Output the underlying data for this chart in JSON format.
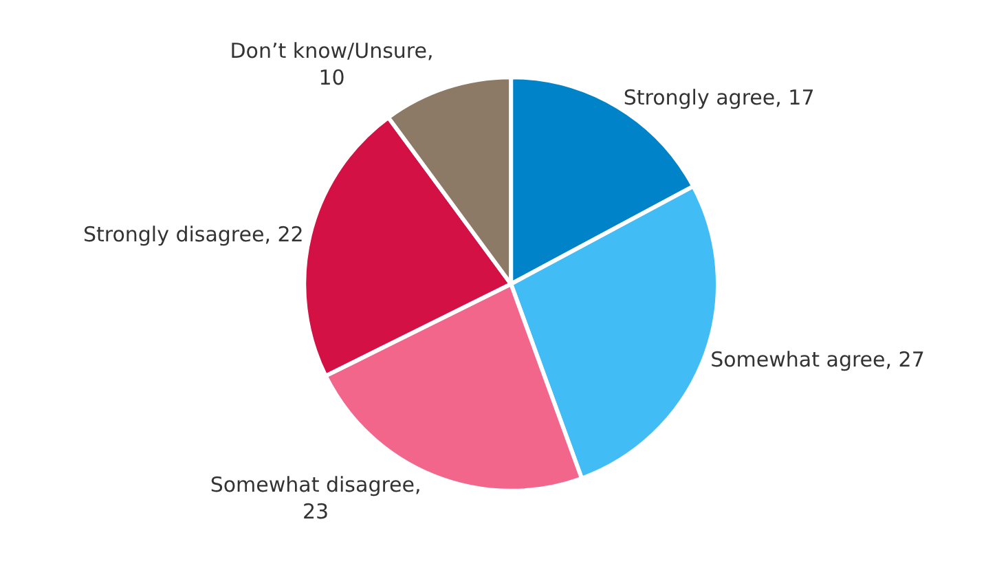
{
  "chart_data": {
    "type": "pie",
    "categories": [
      "Strongly agree, 17",
      "Somewhat agree, 27",
      "Somewhat disagree, 23",
      "Strongly disagree, 22",
      "Don’t know/Unsure, 10"
    ],
    "values": [
      17,
      27,
      23,
      22,
      10
    ],
    "colors": [
      "#0083c9",
      "#42bcf5",
      "#f2668b",
      "#d31145",
      "#8c7a67"
    ],
    "legend": false
  }
}
